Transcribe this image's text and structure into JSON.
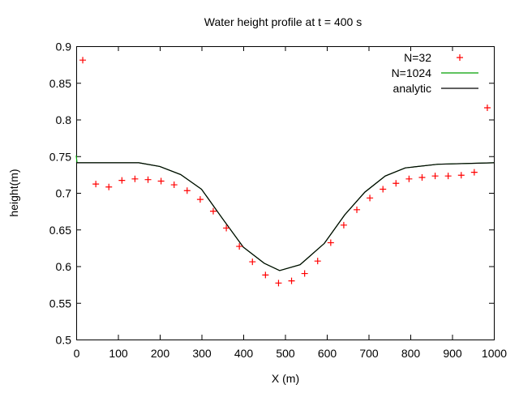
{
  "chart_data": {
    "type": "line",
    "title": "Water height profile at t = 400 s",
    "xlabel": "X (m)",
    "ylabel": "height(m)",
    "xlim": [
      0,
      1000
    ],
    "ylim": [
      0.5,
      0.9
    ],
    "xticks": [
      "0",
      "100",
      "200",
      "300",
      "400",
      "500",
      "600",
      "700",
      "800",
      "900",
      "1000"
    ],
    "yticks": [
      "0.5",
      "0.55",
      "0.6",
      "0.65",
      "0.7",
      "0.75",
      "0.8",
      "0.85",
      "0.9"
    ],
    "grid": false,
    "legend_position": "top-right",
    "series": [
      {
        "name": "N=32",
        "style": "points",
        "marker": "plus",
        "color": "#ff0000",
        "x": [
          15.6,
          46.9,
          78.1,
          109.4,
          140.6,
          171.9,
          203.1,
          234.4,
          265.6,
          296.9,
          328.1,
          359.4,
          390.6,
          421.9,
          453.1,
          484.4,
          515.6,
          546.9,
          578.1,
          609.4,
          640.6,
          671.9,
          703.1,
          734.4,
          765.6,
          796.9,
          828.1,
          859.4,
          890.6,
          921.9,
          953.1,
          984.4
        ],
        "y": [
          0.881,
          0.712,
          0.708,
          0.717,
          0.719,
          0.718,
          0.716,
          0.711,
          0.703,
          0.691,
          0.675,
          0.652,
          0.627,
          0.606,
          0.588,
          0.577,
          0.58,
          0.59,
          0.607,
          0.632,
          0.656,
          0.677,
          0.693,
          0.705,
          0.713,
          0.719,
          0.721,
          0.723,
          0.723,
          0.724,
          0.728,
          0.816
        ]
      },
      {
        "name": "N=1024",
        "style": "line",
        "color": "#00a000",
        "x": [
          0,
          2,
          100,
          150,
          200,
          250,
          300,
          350,
          400,
          450,
          487,
          536,
          594,
          643,
          691,
          740,
          788,
          866,
          1000
        ],
        "y": [
          0.751,
          0.741,
          0.741,
          0.741,
          0.736,
          0.725,
          0.705,
          0.665,
          0.626,
          0.604,
          0.594,
          0.602,
          0.631,
          0.67,
          0.701,
          0.723,
          0.734,
          0.739,
          0.741
        ]
      },
      {
        "name": "analytic",
        "style": "line",
        "color": "#000000",
        "x": [
          0,
          100,
          150,
          200,
          250,
          300,
          350,
          400,
          450,
          487,
          536,
          594,
          643,
          691,
          740,
          788,
          866,
          1000
        ],
        "y": [
          0.741,
          0.741,
          0.741,
          0.736,
          0.725,
          0.705,
          0.665,
          0.626,
          0.604,
          0.594,
          0.602,
          0.631,
          0.67,
          0.701,
          0.723,
          0.734,
          0.739,
          0.741
        ]
      }
    ]
  }
}
